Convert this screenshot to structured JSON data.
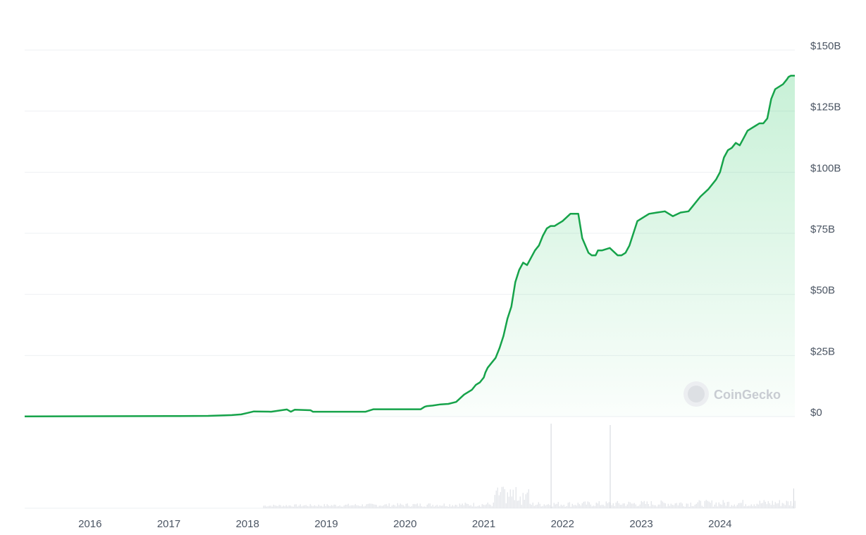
{
  "chart_data": {
    "type": "area",
    "title": "",
    "xlabel": "",
    "ylabel": "",
    "y_axis_position": "right",
    "ylim": [
      0,
      150
    ],
    "x_domain": [
      2015.17,
      2024.95
    ],
    "yticks": [
      {
        "label": "$150B",
        "value": 150
      },
      {
        "label": "$125B",
        "value": 125
      },
      {
        "label": "$100B",
        "value": 100
      },
      {
        "label": "$75B",
        "value": 75
      },
      {
        "label": "$50B",
        "value": 50
      },
      {
        "label": "$25B",
        "value": 25
      },
      {
        "label": "$0",
        "value": 0
      }
    ],
    "xticks": [
      {
        "label": "2016",
        "value": 2016
      },
      {
        "label": "2017",
        "value": 2017
      },
      {
        "label": "2018",
        "value": 2018
      },
      {
        "label": "2019",
        "value": 2019
      },
      {
        "label": "2020",
        "value": 2020
      },
      {
        "label": "2021",
        "value": 2021
      },
      {
        "label": "2022",
        "value": 2022
      },
      {
        "label": "2023",
        "value": 2023
      },
      {
        "label": "2024",
        "value": 2024
      }
    ],
    "grid": true,
    "colors": {
      "line": "#16a34a",
      "fill": "#22c55e",
      "volume": "#e5e7eb",
      "grid": "#eef0f3"
    },
    "series": [
      {
        "x": [
          2015.17,
          2016.0,
          2017.0,
          2017.5,
          2017.8,
          2017.92,
          2018.0,
          2018.08,
          2018.3,
          2018.5,
          2018.55,
          2018.6,
          2018.8,
          2018.83,
          2019.0,
          2019.5,
          2019.6,
          2019.8,
          2019.85,
          2020.0,
          2020.2,
          2020.25,
          2020.28,
          2020.35,
          2020.45,
          2020.55,
          2020.65,
          2020.75,
          2020.85,
          2020.9,
          2020.95,
          2021.0,
          2021.02,
          2021.05,
          2021.1,
          2021.15,
          2021.2,
          2021.25,
          2021.3,
          2021.35,
          2021.4,
          2021.45,
          2021.5,
          2021.55,
          2021.6,
          2021.65,
          2021.7,
          2021.75,
          2021.8,
          2021.85,
          2021.9,
          2021.95,
          2022.0,
          2022.1,
          2022.2,
          2022.25,
          2022.33,
          2022.37,
          2022.42,
          2022.45,
          2022.5,
          2022.6,
          2022.7,
          2022.75,
          2022.8,
          2022.85,
          2022.95,
          2023.05,
          2023.1,
          2023.2,
          2023.3,
          2023.4,
          2023.5,
          2023.6,
          2023.65,
          2023.75,
          2023.85,
          2023.95,
          2024.0,
          2024.05,
          2024.1,
          2024.15,
          2024.2,
          2024.25,
          2024.3,
          2024.35,
          2024.4,
          2024.45,
          2024.5,
          2024.55,
          2024.6,
          2024.65,
          2024.7,
          2024.8,
          2024.85,
          2024.87,
          2024.9,
          2024.95
        ],
        "values": [
          0.1,
          0.15,
          0.2,
          0.3,
          0.6,
          0.9,
          1.5,
          2.1,
          2.0,
          2.9,
          2.0,
          2.8,
          2.6,
          2.0,
          2.0,
          2.0,
          3.0,
          3.0,
          3.0,
          3.0,
          3.0,
          4.0,
          4.3,
          4.5,
          5.0,
          5.2,
          6.0,
          9.0,
          11.0,
          13.0,
          14.0,
          16.0,
          18.0,
          20.0,
          22.0,
          24.0,
          28.0,
          33.0,
          40.0,
          45.0,
          55.0,
          60.0,
          63.0,
          62.0,
          65.0,
          68.0,
          70.0,
          74.0,
          77.0,
          78.0,
          78.0,
          79.0,
          80.0,
          83.0,
          83.0,
          73.0,
          67.0,
          66.0,
          66.0,
          68.0,
          68.0,
          69.0,
          66.0,
          66.0,
          67.0,
          70.0,
          80.0,
          82.0,
          83.0,
          83.5,
          84.0,
          82.0,
          83.5,
          84.0,
          86.0,
          90.0,
          93.0,
          97.0,
          100.0,
          106.0,
          109.0,
          110.0,
          112.0,
          111.0,
          114.0,
          117.0,
          118.0,
          119.0,
          120.0,
          120.0,
          122.0,
          130.0,
          134.0,
          136.0,
          138.0,
          139.0,
          139.5,
          139.5
        ]
      }
    ]
  },
  "watermark": {
    "text": "CoinGecko",
    "icon": "coingecko-logo-icon"
  }
}
